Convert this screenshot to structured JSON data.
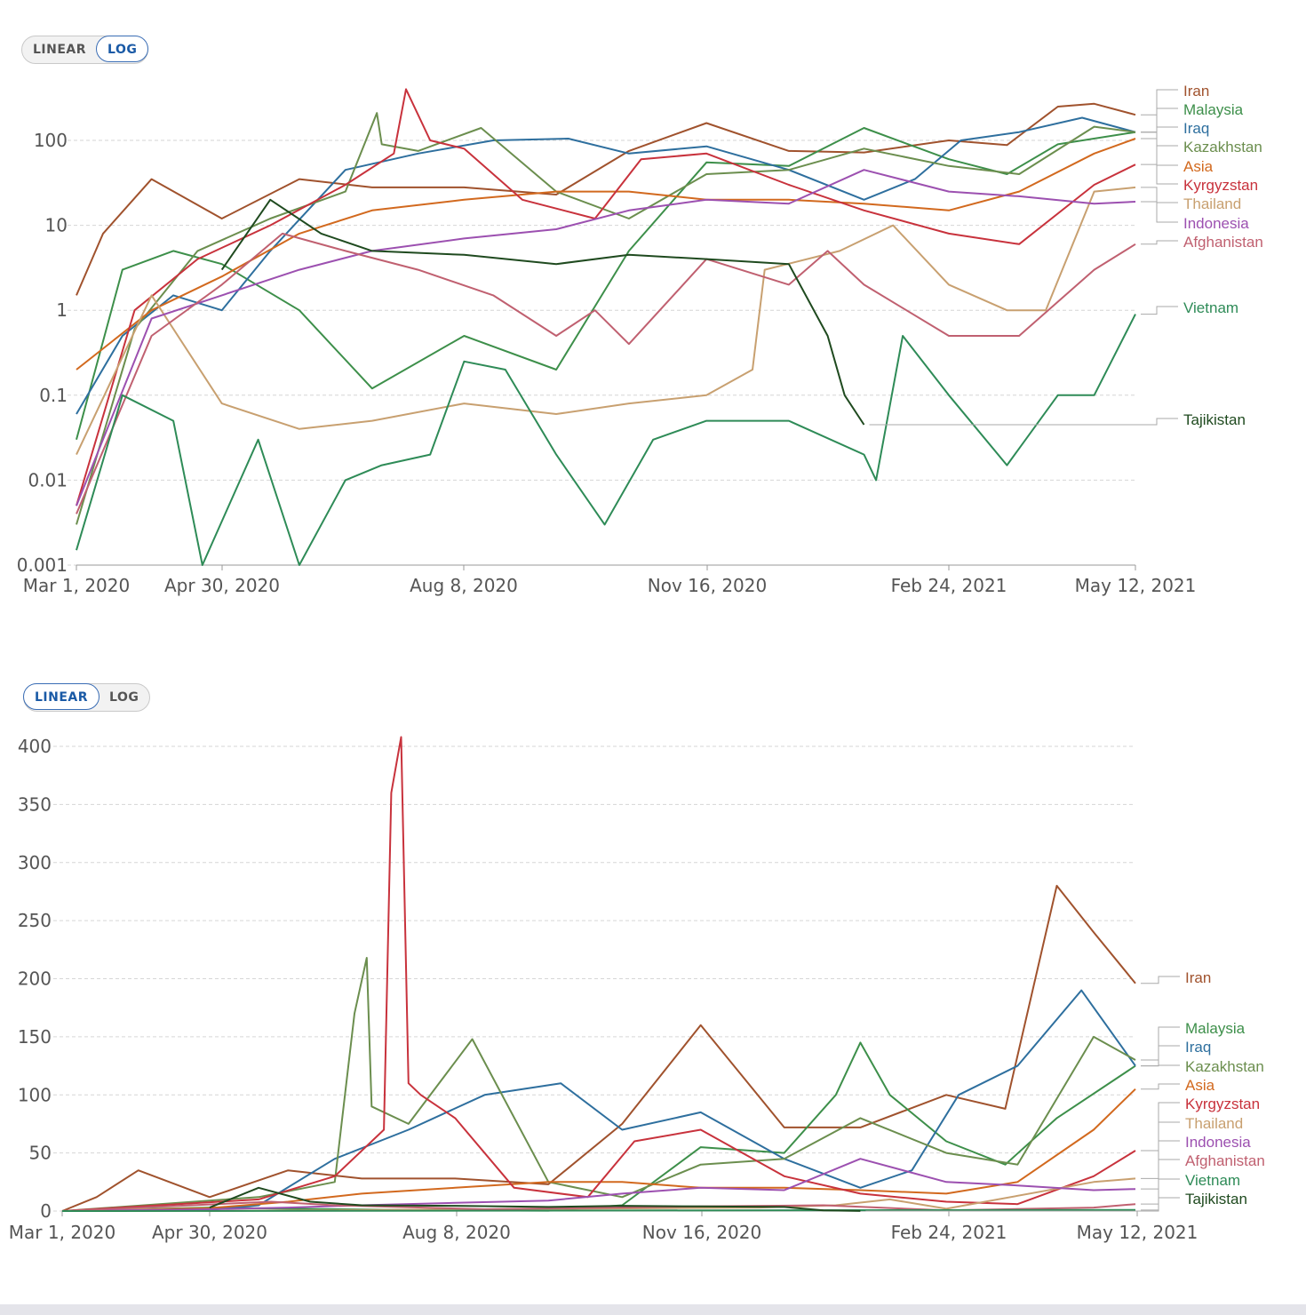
{
  "controls": {
    "top": {
      "linear_label": "LINEAR",
      "log_label": "LOG",
      "active": "log"
    },
    "bottom": {
      "linear_label": "LINEAR",
      "log_label": "LOG",
      "active": "linear"
    }
  },
  "chart_data": [
    {
      "type": "line",
      "title": "",
      "xlabel": "",
      "ylabel": "",
      "yscale": "log",
      "ylim": [
        0.001,
        400
      ],
      "xlim": [
        "2020-03-01",
        "2021-05-12"
      ],
      "x_ticks": [
        "Mar 1, 2020",
        "Apr 30, 2020",
        "Aug 8, 2020",
        "Nov 16, 2020",
        "Feb 24, 2021",
        "May 12, 2021"
      ],
      "y_ticks": [
        "0.001",
        "0.01",
        "0.1",
        "1",
        "10",
        "100"
      ],
      "grid": true,
      "legend_position": "right",
      "series": [
        {
          "name": "Iran",
          "color": "#a0522d",
          "dates": [
            "2020-03-01",
            "2020-03-12",
            "2020-04-01",
            "2020-04-30",
            "2020-06-01",
            "2020-07-01",
            "2020-08-08",
            "2020-09-15",
            "2020-10-15",
            "2020-11-16",
            "2020-12-20",
            "2021-01-20",
            "2021-02-24",
            "2021-03-20",
            "2021-04-10",
            "2021-04-25",
            "2021-05-12"
          ],
          "values": [
            1.5,
            8,
            35,
            12,
            35,
            28,
            28,
            23,
            75,
            160,
            75,
            72,
            100,
            88,
            250,
            270,
            200
          ]
        },
        {
          "name": "Malaysia",
          "color": "#3d8f4a",
          "dates": [
            "2020-03-01",
            "2020-03-20",
            "2020-04-10",
            "2020-04-30",
            "2020-06-01",
            "2020-07-01",
            "2020-08-08",
            "2020-09-15",
            "2020-10-15",
            "2020-11-16",
            "2020-12-20",
            "2021-01-20",
            "2021-02-24",
            "2021-03-20",
            "2021-04-10",
            "2021-05-12"
          ],
          "values": [
            0.03,
            3,
            5,
            3.5,
            1,
            0.12,
            0.5,
            0.2,
            5,
            55,
            50,
            140,
            60,
            40,
            90,
            125
          ]
        },
        {
          "name": "Iraq",
          "color": "#2e6f9e",
          "dates": [
            "2020-03-01",
            "2020-03-20",
            "2020-04-10",
            "2020-04-30",
            "2020-05-20",
            "2020-06-20",
            "2020-07-20",
            "2020-08-20",
            "2020-09-20",
            "2020-10-15",
            "2020-11-16",
            "2020-12-20",
            "2021-01-20",
            "2021-02-10",
            "2021-03-01",
            "2021-03-25",
            "2021-04-20",
            "2021-05-12"
          ],
          "values": [
            0.06,
            0.5,
            1.5,
            1,
            5,
            45,
            70,
            100,
            105,
            70,
            85,
            45,
            20,
            35,
            100,
            125,
            185,
            125
          ]
        },
        {
          "name": "Kazakhstan",
          "color": "#6b8e4e",
          "dates": [
            "2020-03-01",
            "2020-03-25",
            "2020-04-20",
            "2020-05-20",
            "2020-06-20",
            "2020-07-03",
            "2020-07-05",
            "2020-07-20",
            "2020-08-15",
            "2020-09-15",
            "2020-10-15",
            "2020-11-16",
            "2020-12-20",
            "2021-01-20",
            "2021-02-24",
            "2021-03-25",
            "2021-04-25",
            "2021-05-12"
          ],
          "values": [
            0.003,
            0.6,
            5,
            12,
            25,
            210,
            90,
            75,
            140,
            25,
            12,
            40,
            45,
            80,
            50,
            40,
            145,
            125
          ]
        },
        {
          "name": "Asia",
          "color": "#d2691e",
          "dates": [
            "2020-03-01",
            "2020-04-01",
            "2020-04-30",
            "2020-06-01",
            "2020-07-01",
            "2020-08-08",
            "2020-09-15",
            "2020-10-15",
            "2020-11-16",
            "2020-12-20",
            "2021-01-20",
            "2021-02-24",
            "2021-03-25",
            "2021-04-25",
            "2021-05-12"
          ],
          "values": [
            0.2,
            1,
            2.5,
            8,
            15,
            20,
            25,
            25,
            20,
            20,
            18,
            15,
            25,
            70,
            105
          ]
        },
        {
          "name": "Kyrgyzstan",
          "color": "#c8323c",
          "dates": [
            "2020-03-01",
            "2020-03-25",
            "2020-04-20",
            "2020-05-20",
            "2020-06-20",
            "2020-07-10",
            "2020-07-15",
            "2020-07-25",
            "2020-08-08",
            "2020-09-01",
            "2020-10-01",
            "2020-10-20",
            "2020-11-16",
            "2020-12-20",
            "2021-01-20",
            "2021-02-24",
            "2021-03-25",
            "2021-04-25",
            "2021-05-12"
          ],
          "values": [
            0.005,
            1,
            4,
            10,
            30,
            70,
            400,
            100,
            80,
            20,
            12,
            60,
            70,
            30,
            15,
            8,
            6,
            30,
            52
          ]
        },
        {
          "name": "Thailand",
          "color": "#c8a070",
          "dates": [
            "2020-03-01",
            "2020-04-01",
            "2020-04-30",
            "2020-06-01",
            "2020-07-01",
            "2020-08-08",
            "2020-09-15",
            "2020-10-15",
            "2020-11-16",
            "2020-12-05",
            "2020-12-10",
            "2021-01-10",
            "2021-02-01",
            "2021-02-24",
            "2021-03-20",
            "2021-04-05",
            "2021-04-25",
            "2021-05-12"
          ],
          "values": [
            0.02,
            1.5,
            0.08,
            0.04,
            0.05,
            0.08,
            0.06,
            0.08,
            0.1,
            0.2,
            3,
            5,
            10,
            2,
            1,
            1,
            25,
            28
          ]
        },
        {
          "name": "Indonesia",
          "color": "#9c50b0",
          "dates": [
            "2020-03-01",
            "2020-04-01",
            "2020-04-30",
            "2020-06-01",
            "2020-07-01",
            "2020-08-08",
            "2020-09-15",
            "2020-10-15",
            "2020-11-16",
            "2020-12-20",
            "2021-01-20",
            "2021-02-24",
            "2021-03-25",
            "2021-04-25",
            "2021-05-12"
          ],
          "values": [
            0.005,
            0.8,
            1.5,
            3,
            5,
            7,
            9,
            15,
            20,
            18,
            45,
            25,
            22,
            18,
            19
          ]
        },
        {
          "name": "Afghanistan",
          "color": "#c06070",
          "dates": [
            "2020-03-01",
            "2020-04-01",
            "2020-04-30",
            "2020-05-25",
            "2020-06-20",
            "2020-07-20",
            "2020-08-20",
            "2020-09-15",
            "2020-10-01",
            "2020-10-15",
            "2020-11-16",
            "2020-12-20",
            "2021-01-05",
            "2021-01-20",
            "2021-02-24",
            "2021-03-25",
            "2021-04-25",
            "2021-05-12"
          ],
          "values": [
            0.004,
            0.5,
            2,
            8,
            5,
            3,
            1.5,
            0.5,
            1,
            0.4,
            4,
            2,
            5,
            2,
            0.5,
            0.5,
            3,
            6
          ]
        },
        {
          "name": "Vietnam",
          "color": "#2e8b57",
          "dates": [
            "2020-03-01",
            "2020-03-20",
            "2020-04-10",
            "2020-04-22",
            "2020-05-15",
            "2020-06-01",
            "2020-06-20",
            "2020-07-05",
            "2020-07-25",
            "2020-08-08",
            "2020-08-25",
            "2020-09-15",
            "2020-10-05",
            "2020-10-25",
            "2020-11-16",
            "2020-12-20",
            "2021-01-20",
            "2021-01-25",
            "2021-02-05",
            "2021-02-24",
            "2021-03-20",
            "2021-04-10",
            "2021-04-25",
            "2021-05-12"
          ],
          "values": [
            0.0015,
            0.1,
            0.05,
            0.001,
            0.03,
            0.001,
            0.01,
            0.015,
            0.02,
            0.25,
            0.2,
            0.02,
            0.003,
            0.03,
            0.05,
            0.05,
            0.02,
            0.01,
            0.5,
            0.1,
            0.015,
            0.1,
            0.1,
            0.9
          ]
        },
        {
          "name": "Tajikistan",
          "color": "#1f4a1f",
          "dates": [
            "2020-03-01",
            "2020-04-30",
            "2020-05-20",
            "2020-06-10",
            "2020-07-01",
            "2020-08-08",
            "2020-09-15",
            "2020-10-15",
            "2020-11-16",
            "2020-12-20",
            "2021-01-05",
            "2021-01-12",
            "2021-01-20"
          ],
          "values": [
            null,
            3,
            20,
            8,
            5,
            4.5,
            3.5,
            4.5,
            4,
            3.5,
            0.5,
            0.1,
            0.045
          ]
        }
      ]
    },
    {
      "type": "line",
      "title": "",
      "xlabel": "",
      "ylabel": "",
      "yscale": "linear",
      "ylim": [
        0,
        410
      ],
      "xlim": [
        "2020-03-01",
        "2021-05-12"
      ],
      "x_ticks": [
        "Mar 1, 2020",
        "Apr 30, 2020",
        "Aug 8, 2020",
        "Nov 16, 2020",
        "Feb 24, 2021",
        "May 12, 2021"
      ],
      "y_ticks": [
        "0",
        "50",
        "100",
        "150",
        "200",
        "250",
        "300",
        "350",
        "400"
      ],
      "grid": true,
      "legend_position": "right",
      "series": [
        {
          "name": "Iran",
          "color": "#a0522d",
          "dates": [
            "2020-03-01",
            "2020-03-15",
            "2020-04-01",
            "2020-04-30",
            "2020-06-01",
            "2020-07-01",
            "2020-08-08",
            "2020-09-15",
            "2020-10-15",
            "2020-11-16",
            "2020-12-20",
            "2021-01-20",
            "2021-02-24",
            "2021-03-20",
            "2021-04-10",
            "2021-04-25",
            "2021-05-12"
          ],
          "values": [
            0,
            12,
            35,
            12,
            35,
            28,
            28,
            23,
            75,
            160,
            72,
            72,
            100,
            88,
            280,
            240,
            196
          ]
        },
        {
          "name": "Malaysia",
          "color": "#3d8f4a",
          "dates": [
            "2020-03-01",
            "2020-04-30",
            "2020-06-01",
            "2020-08-08",
            "2020-09-15",
            "2020-10-15",
            "2020-11-16",
            "2020-12-20",
            "2021-01-10",
            "2021-01-20",
            "2021-02-01",
            "2021-02-24",
            "2021-03-20",
            "2021-04-10",
            "2021-05-12"
          ],
          "values": [
            0,
            3,
            2,
            0.5,
            0.3,
            5,
            55,
            50,
            100,
            145,
            100,
            60,
            40,
            80,
            125
          ]
        },
        {
          "name": "Iraq",
          "color": "#2e6f9e",
          "dates": [
            "2020-03-01",
            "2020-04-30",
            "2020-05-20",
            "2020-06-20",
            "2020-07-20",
            "2020-08-20",
            "2020-09-20",
            "2020-10-15",
            "2020-11-16",
            "2020-12-20",
            "2021-01-20",
            "2021-02-10",
            "2021-03-01",
            "2021-03-25",
            "2021-04-20",
            "2021-05-12"
          ],
          "values": [
            0,
            1,
            5,
            45,
            70,
            100,
            110,
            70,
            85,
            45,
            20,
            35,
            100,
            125,
            190,
            125
          ]
        },
        {
          "name": "Kazakhstan",
          "color": "#6b8e4e",
          "dates": [
            "2020-03-01",
            "2020-05-20",
            "2020-06-20",
            "2020-06-28",
            "2020-07-03",
            "2020-07-05",
            "2020-07-20",
            "2020-08-15",
            "2020-09-15",
            "2020-10-15",
            "2020-11-16",
            "2020-12-20",
            "2021-01-20",
            "2021-02-24",
            "2021-03-25",
            "2021-04-25",
            "2021-05-12"
          ],
          "values": [
            0,
            12,
            25,
            170,
            218,
            90,
            75,
            148,
            25,
            12,
            40,
            45,
            80,
            50,
            40,
            150,
            130
          ]
        },
        {
          "name": "Asia",
          "color": "#d2691e",
          "dates": [
            "2020-03-01",
            "2020-04-30",
            "2020-06-01",
            "2020-07-01",
            "2020-08-08",
            "2020-09-15",
            "2020-10-15",
            "2020-11-16",
            "2020-12-20",
            "2021-01-20",
            "2021-02-24",
            "2021-03-25",
            "2021-04-25",
            "2021-05-12"
          ],
          "values": [
            0,
            2.5,
            8,
            15,
            20,
            25,
            25,
            20,
            20,
            18,
            15,
            25,
            70,
            105
          ]
        },
        {
          "name": "Kyrgyzstan",
          "color": "#c8323c",
          "dates": [
            "2020-03-01",
            "2020-05-20",
            "2020-06-20",
            "2020-07-10",
            "2020-07-13",
            "2020-07-17",
            "2020-07-20",
            "2020-07-25",
            "2020-08-08",
            "2020-09-01",
            "2020-10-01",
            "2020-10-20",
            "2020-11-16",
            "2020-12-20",
            "2021-01-20",
            "2021-02-24",
            "2021-03-25",
            "2021-04-25",
            "2021-05-12"
          ],
          "values": [
            0,
            10,
            30,
            70,
            360,
            408,
            110,
            100,
            80,
            20,
            12,
            60,
            70,
            30,
            15,
            8,
            6,
            30,
            52
          ]
        },
        {
          "name": "Thailand",
          "color": "#c8a070",
          "dates": [
            "2020-03-01",
            "2020-04-01",
            "2020-04-30",
            "2020-12-10",
            "2021-01-10",
            "2021-02-01",
            "2021-02-24",
            "2021-04-25",
            "2021-05-12"
          ],
          "values": [
            0,
            1.5,
            0.1,
            3,
            5,
            10,
            2,
            25,
            28
          ]
        },
        {
          "name": "Indonesia",
          "color": "#9c50b0",
          "dates": [
            "2020-03-01",
            "2020-04-30",
            "2020-06-01",
            "2020-07-01",
            "2020-08-08",
            "2020-09-15",
            "2020-10-15",
            "2020-11-16",
            "2020-12-20",
            "2021-01-20",
            "2021-02-24",
            "2021-03-25",
            "2021-04-25",
            "2021-05-12"
          ],
          "values": [
            0,
            1.5,
            3,
            5,
            7,
            9,
            15,
            20,
            18,
            45,
            25,
            22,
            18,
            19
          ]
        },
        {
          "name": "Afghanistan",
          "color": "#c06070",
          "dates": [
            "2020-03-01",
            "2020-05-25",
            "2020-06-20",
            "2020-08-20",
            "2020-11-16",
            "2021-01-05",
            "2021-02-24",
            "2021-04-25",
            "2021-05-12"
          ],
          "values": [
            0,
            8,
            5,
            1.5,
            4,
            5,
            0.5,
            3,
            6
          ]
        },
        {
          "name": "Vietnam",
          "color": "#2e8b57",
          "dates": [
            "2020-03-01",
            "2021-05-12"
          ],
          "values": [
            0,
            0.9
          ]
        },
        {
          "name": "Tajikistan",
          "color": "#1f4a1f",
          "dates": [
            "2020-03-01",
            "2020-04-30",
            "2020-05-20",
            "2020-06-10",
            "2020-07-01",
            "2020-08-08",
            "2020-09-15",
            "2020-10-15",
            "2020-11-16",
            "2020-12-20",
            "2021-01-05",
            "2021-01-20"
          ],
          "values": [
            null,
            3,
            20,
            8,
            5,
            4.5,
            3.5,
            4.5,
            4,
            3.5,
            0.5,
            0.045
          ]
        }
      ]
    }
  ]
}
